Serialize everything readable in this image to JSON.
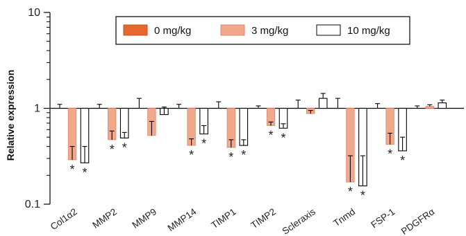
{
  "chart_data": {
    "type": "bar",
    "scale": "log",
    "ylim": [
      0.1,
      10
    ],
    "yticks": [
      {
        "value": 0.1,
        "label": "0.1"
      },
      {
        "value": 1,
        "label": "1"
      },
      {
        "value": 10,
        "label": "10"
      }
    ],
    "baseline": 1,
    "ylabel": "Relative expression",
    "xlabel": "",
    "legend_position": "top-right",
    "categories": [
      "Col1α2",
      "MMP2",
      "MMP9",
      "MMP14",
      "TIMP1",
      "TIMP2",
      "Scleraxis",
      "Tnmd",
      "FSP-1",
      "PDGFRα"
    ],
    "series": [
      {
        "name": "0 mg/kg",
        "color": "#e8672f",
        "values": [
          1,
          1,
          1,
          1,
          1,
          1,
          1,
          1,
          1,
          1
        ],
        "error_upper": [
          1.1,
          1.1,
          1.27,
          1.1,
          1.17,
          1.06,
          1.22,
          1.27,
          1.12,
          1.06
        ]
      },
      {
        "name": "3 mg/kg",
        "color": "#f2a98b",
        "values": [
          0.29,
          0.47,
          0.52,
          0.41,
          0.39,
          0.66,
          0.88,
          0.17,
          0.42,
          1.05
        ],
        "error_upper": [
          0.4,
          0.58,
          0.73,
          0.48,
          0.47,
          0.72,
          0.95,
          0.32,
          0.55,
          1.09
        ],
        "significant": [
          true,
          true,
          false,
          true,
          true,
          true,
          false,
          true,
          true,
          false
        ]
      },
      {
        "name": "10 mg/kg",
        "color": "#ffffff",
        "values": [
          0.27,
          0.49,
          0.86,
          0.54,
          0.41,
          0.62,
          1.27,
          0.155,
          0.36,
          1.14
        ],
        "error_upper": [
          0.4,
          0.56,
          1.03,
          0.66,
          0.47,
          0.69,
          1.43,
          0.32,
          0.5,
          1.22
        ],
        "significant": [
          true,
          true,
          false,
          true,
          true,
          true,
          false,
          true,
          true,
          false
        ]
      }
    ],
    "annotation_marker": "*"
  }
}
